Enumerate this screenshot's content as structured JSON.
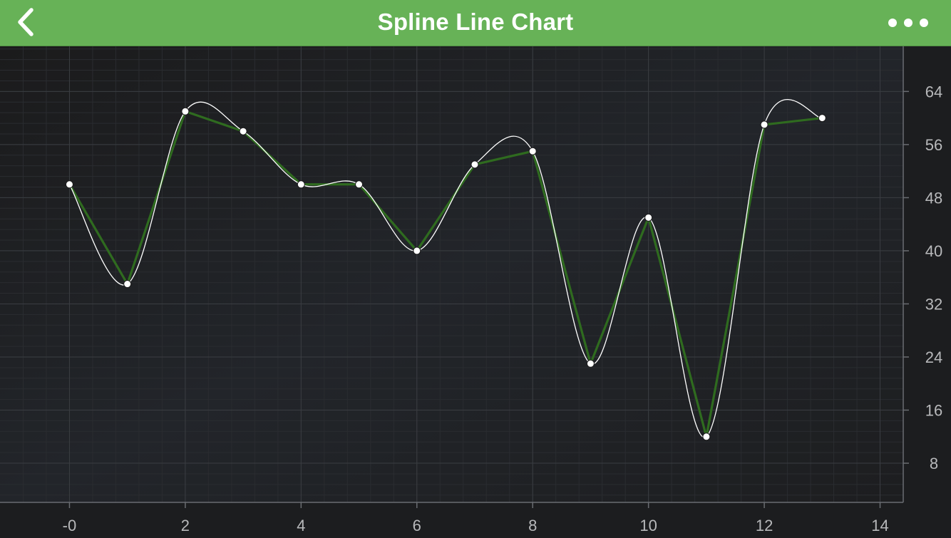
{
  "header": {
    "title": "Spline Line Chart",
    "back_icon": "chevron-left-icon",
    "more_icon": "more-horizontal-icon",
    "bar_color": "#67b257"
  },
  "chart_data": {
    "type": "line",
    "title": "",
    "xlabel": "",
    "ylabel": "",
    "x_ticks": [
      "-0",
      "2",
      "4",
      "6",
      "8",
      "10",
      "12",
      "14"
    ],
    "x_tick_values": [
      0,
      2,
      4,
      6,
      8,
      10,
      12,
      14
    ],
    "y_ticks": [
      "8",
      "16",
      "24",
      "32",
      "40",
      "48",
      "56",
      "64"
    ],
    "y_tick_values": [
      8,
      16,
      24,
      32,
      40,
      48,
      56,
      64
    ],
    "xlim": [
      -1.2,
      14.4
    ],
    "ylim": [
      2.1,
      70.8
    ],
    "y_axis_position": "right",
    "grid": true,
    "series": [
      {
        "style": "straight",
        "color": "#2f6b1f",
        "x": [
          0,
          1,
          2,
          3,
          4,
          5,
          6,
          7,
          8,
          9,
          10,
          11,
          12,
          13
        ],
        "values": [
          50,
          35,
          61,
          58,
          50,
          50,
          40,
          53,
          55,
          23,
          45,
          12,
          59,
          60
        ]
      },
      {
        "style": "spline",
        "color": "#ffffff",
        "marker_color": "#ffffff",
        "x": [
          0,
          1,
          2,
          3,
          4,
          5,
          6,
          7,
          8,
          9,
          10,
          11,
          12,
          13
        ],
        "values": [
          50,
          35,
          61,
          58,
          50,
          50,
          40,
          53,
          55,
          23,
          45,
          12,
          59,
          60
        ]
      }
    ]
  }
}
